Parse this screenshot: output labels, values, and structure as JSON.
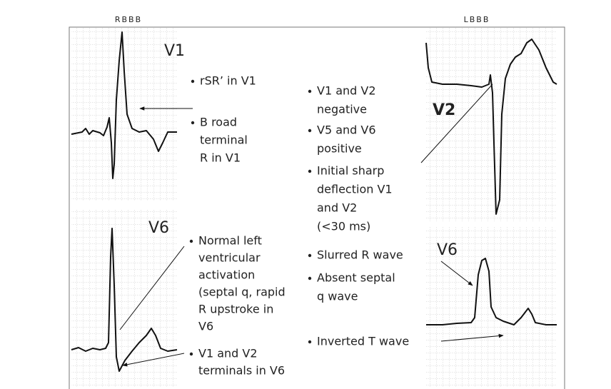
{
  "rbbb": {
    "title": "RBBB",
    "v1_label": "V1",
    "v6_label": "V6",
    "v1_notes": [
      [
        "rSR’ in V1"
      ],
      [
        "B road",
        "terminal",
        "R in V1"
      ]
    ],
    "v6_notes": [
      [
        "Normal left",
        "ventricular",
        "activation",
        "(septal q, rapid",
        "R upstroke in",
        "V6"
      ],
      [
        "V1 and V2",
        "terminals in V6"
      ]
    ]
  },
  "lbbb": {
    "title": "LBBB",
    "v2_label": "V2",
    "v6_label": "V6",
    "notes": [
      [
        "V1 and V2",
        "negative"
      ],
      [
        "V5 and V6",
        "positive"
      ],
      [
        "Initial sharp",
        "deflection V1",
        "and V2",
        "(<30 ms)"
      ],
      [
        "Slurred R wave"
      ],
      [
        "Absent septal",
        "q wave"
      ],
      [
        "Inverted T wave"
      ]
    ]
  }
}
